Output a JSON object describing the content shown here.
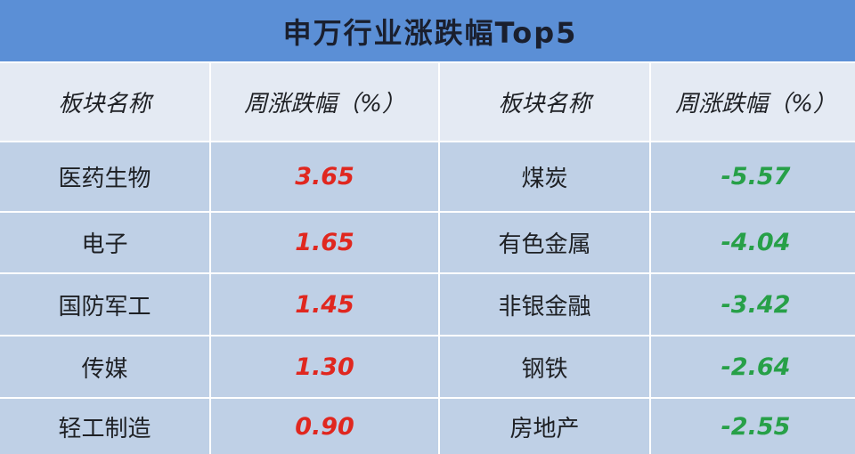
{
  "chart_data": {
    "type": "table",
    "title": "申万行业涨跌幅Top5",
    "headers": [
      "板块名称",
      "周涨跌幅（%）",
      "板块名称",
      "周涨跌幅（%）"
    ],
    "rows": [
      {
        "up_name": "医药生物",
        "up_value": "3.65",
        "down_name": "煤炭",
        "down_value": "-5.57"
      },
      {
        "up_name": "电子",
        "up_value": "1.65",
        "down_name": "有色金属",
        "down_value": "-4.04"
      },
      {
        "up_name": "国防军工",
        "up_value": "1.45",
        "down_name": "非银金融",
        "down_value": "-3.42"
      },
      {
        "up_name": "传媒",
        "up_value": "1.30",
        "down_name": "钢铁",
        "down_value": "-2.64"
      },
      {
        "up_name": "轻工制造",
        "up_value": "0.90",
        "down_name": "房地产",
        "down_value": "-2.55"
      }
    ],
    "colors": {
      "title_bg": "#5b8fd6",
      "header_bg": "#e4eaf3",
      "row_bg": "#bfd0e6",
      "positive": "#e0271f",
      "negative": "#27a048"
    }
  }
}
